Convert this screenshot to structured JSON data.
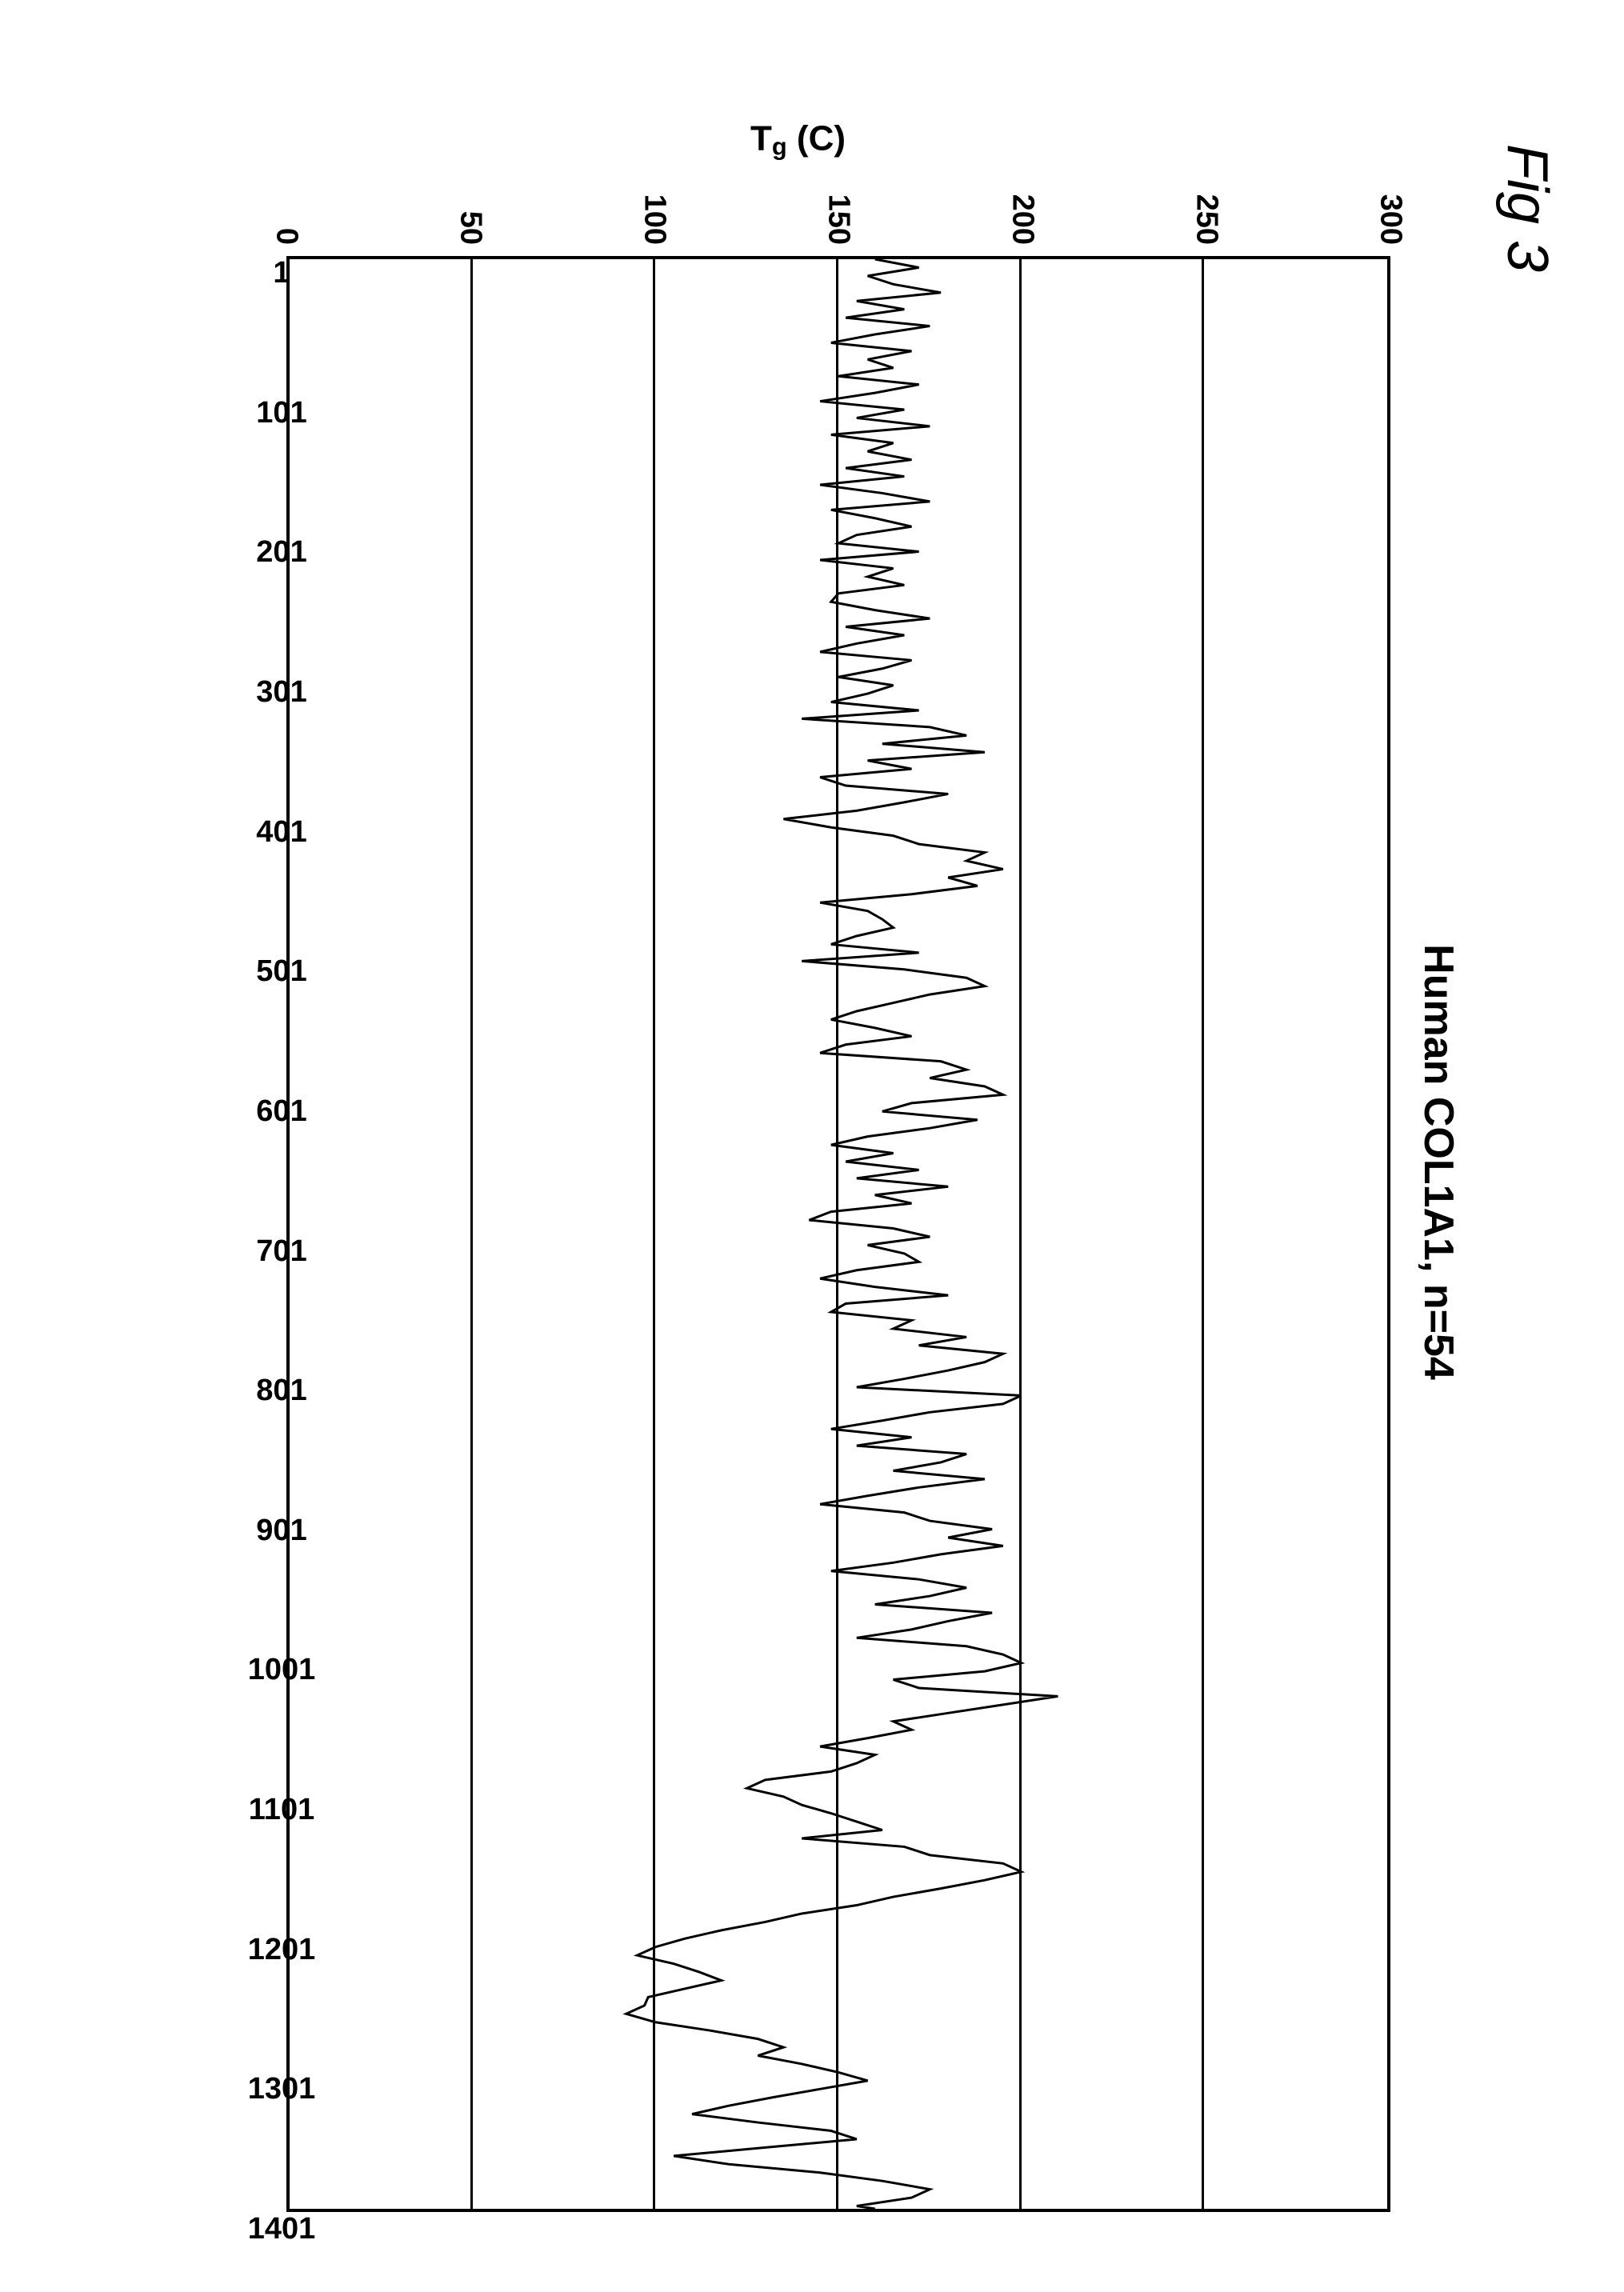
{
  "figure_label": "Fig 3",
  "chart": {
    "type": "line",
    "title": "Human COL1A1, n=54",
    "ylabel_html": "T<sub>g</sub> (C)",
    "ylim": [
      0,
      300
    ],
    "yticks": [
      0,
      50,
      100,
      150,
      200,
      250,
      300
    ],
    "xlim": [
      1,
      1401
    ],
    "xticks": [
      1,
      101,
      201,
      301,
      401,
      501,
      601,
      701,
      801,
      901,
      1001,
      1101,
      1201,
      1301,
      1401
    ],
    "gridlines_y": [
      50,
      100,
      150,
      200,
      250
    ],
    "line_color": "#000000",
    "line_width": 3,
    "background_color": "#ffffff",
    "grid_color": "#000000",
    "border_color": "#000000",
    "title_fontsize": 52,
    "label_fontsize": 44,
    "tick_fontsize": 38,
    "series": {
      "x": [
        1,
        7,
        13,
        19,
        25,
        31,
        37,
        43,
        49,
        55,
        61,
        67,
        73,
        79,
        85,
        91,
        97,
        103,
        109,
        115,
        121,
        127,
        133,
        139,
        145,
        151,
        157,
        163,
        169,
        175,
        181,
        187,
        193,
        199,
        205,
        211,
        217,
        223,
        229,
        235,
        241,
        247,
        253,
        259,
        265,
        271,
        277,
        283,
        289,
        295,
        301,
        307,
        313,
        319,
        325,
        331,
        337,
        343,
        349,
        355,
        361,
        367,
        373,
        379,
        385,
        391,
        397,
        403,
        409,
        415,
        421,
        427,
        433,
        439,
        445,
        451,
        457,
        463,
        469,
        475,
        481,
        487,
        493,
        499,
        505,
        511,
        517,
        523,
        529,
        535,
        541,
        547,
        553,
        559,
        565,
        571,
        577,
        583,
        589,
        595,
        601,
        607,
        613,
        619,
        625,
        631,
        637,
        643,
        649,
        655,
        661,
        667,
        673,
        679,
        685,
        691,
        697,
        703,
        709,
        715,
        721,
        727,
        733,
        739,
        745,
        751,
        757,
        763,
        769,
        775,
        781,
        787,
        793,
        799,
        805,
        811,
        817,
        823,
        829,
        835,
        841,
        847,
        853,
        859,
        865,
        871,
        877,
        883,
        889,
        895,
        901,
        907,
        913,
        919,
        925,
        931,
        937,
        943,
        949,
        955,
        961,
        967,
        973,
        979,
        985,
        991,
        997,
        1003,
        1009,
        1015,
        1021,
        1027,
        1033,
        1039,
        1045,
        1051,
        1057,
        1063,
        1069,
        1075,
        1081,
        1087,
        1093,
        1099,
        1105,
        1111,
        1117,
        1123,
        1129,
        1135,
        1141,
        1147,
        1153,
        1159,
        1165,
        1171,
        1177,
        1183,
        1189,
        1195,
        1201,
        1207,
        1213,
        1219,
        1225,
        1231,
        1237,
        1243,
        1249,
        1255,
        1261,
        1267,
        1273,
        1279,
        1285,
        1291,
        1297,
        1303,
        1309,
        1315,
        1321,
        1327,
        1333,
        1339,
        1345,
        1351,
        1357,
        1363,
        1369,
        1375,
        1381,
        1387,
        1393,
        1399,
        1401
      ],
      "y": [
        160,
        172,
        158,
        165,
        178,
        155,
        168,
        152,
        175,
        160,
        148,
        170,
        158,
        165,
        150,
        172,
        160,
        145,
        168,
        155,
        175,
        148,
        165,
        158,
        170,
        152,
        168,
        145,
        162,
        175,
        148,
        160,
        170,
        155,
        150,
        172,
        145,
        165,
        158,
        168,
        150,
        148,
        160,
        175,
        152,
        168,
        155,
        145,
        170,
        162,
        150,
        165,
        158,
        148,
        172,
        140,
        175,
        185,
        162,
        190,
        158,
        170,
        145,
        152,
        180,
        168,
        155,
        135,
        148,
        165,
        172,
        190,
        185,
        195,
        180,
        188,
        170,
        145,
        158,
        162,
        165,
        155,
        148,
        172,
        140,
        168,
        185,
        190,
        175,
        165,
        155,
        148,
        160,
        170,
        152,
        145,
        178,
        185,
        175,
        190,
        195,
        170,
        162,
        188,
        175,
        158,
        148,
        165,
        152,
        172,
        155,
        180,
        160,
        170,
        148,
        142,
        165,
        175,
        158,
        168,
        172,
        155,
        145,
        160,
        180,
        152,
        148,
        170,
        165,
        185,
        172,
        195,
        190,
        180,
        168,
        155,
        200,
        195,
        175,
        162,
        148,
        170,
        155,
        185,
        178,
        165,
        190,
        172,
        158,
        145,
        168,
        175,
        192,
        180,
        195,
        178,
        165,
        148,
        172,
        185,
        175,
        160,
        192,
        180,
        170,
        155,
        185,
        195,
        200,
        190,
        165,
        172,
        210,
        195,
        180,
        165,
        170,
        158,
        145,
        160,
        155,
        148,
        130,
        125,
        135,
        140,
        148,
        155,
        162,
        140,
        168,
        175,
        195,
        200,
        190,
        178,
        165,
        155,
        140,
        130,
        118,
        108,
        100,
        95,
        105,
        112,
        118,
        108,
        98,
        97,
        92,
        100,
        115,
        128,
        135,
        128,
        140,
        150,
        158,
        145,
        132,
        120,
        110,
        128,
        148,
        155,
        130,
        105,
        120,
        145,
        162,
        175,
        170,
        155,
        160
      ]
    }
  }
}
